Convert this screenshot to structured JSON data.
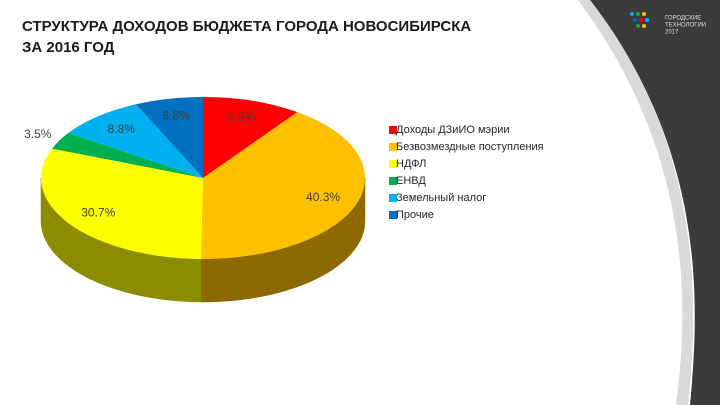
{
  "chart_data": {
    "type": "pie",
    "title": [
      "СТРУКТУРА ДОХОДОВ БЮДЖЕТА ГОРОДА НОВОСИБИРСКА",
      "ЗА 2016 ГОД"
    ],
    "categories": [
      "Доходы ДЗиИО мэрии",
      "Безвозмездные поступления",
      "НДФЛ",
      "ЕНВД",
      "Земельный налог",
      "Прочие"
    ],
    "values": [
      9.9,
      40.3,
      30.7,
      3.5,
      8.8,
      6.8
    ],
    "value_labels": [
      "9.9%",
      "40.3%",
      "30.7%",
      "3.5%",
      "8.8%",
      "6.8%"
    ],
    "colors": [
      "#ff0000",
      "#ffc000",
      "#ffff00",
      "#00b050",
      "#00b0f0",
      "#0070c0"
    ],
    "legend": "right"
  },
  "logo": {
    "lines": [
      "ГОРОДСКИЕ",
      "ТЕХНОЛОГИИ",
      "2017"
    ]
  }
}
